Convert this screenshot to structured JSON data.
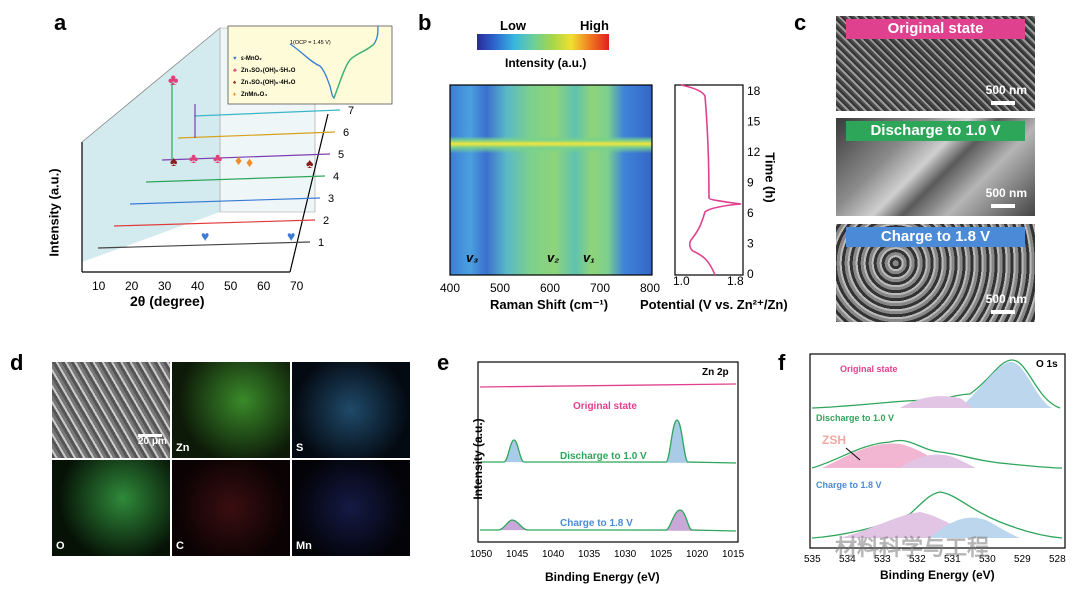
{
  "panels": {
    "a": {
      "label": "a",
      "xlabel": "2θ (degree)",
      "ylabel": "Intensity (a.u.)",
      "xticks": [
        "10",
        "20",
        "30",
        "40",
        "50",
        "60",
        "70"
      ],
      "curves": [
        "1",
        "2",
        "3",
        "4",
        "5",
        "6",
        "7"
      ],
      "legend": [
        {
          "symbol": "♥",
          "text": "ε-MnO₂",
          "color": "#3a7bd5"
        },
        {
          "symbol": "♣",
          "text": "Zn₄SO₄(OH)₆·5H₂O",
          "color": "#e0417b"
        },
        {
          "symbol": "♠",
          "text": "Zn₄SO₄(OH)₆·4H₂O",
          "color": "#8b1a1a"
        },
        {
          "symbol": "♦",
          "text": "ZnMn₂O₄",
          "color": "#f08c2a"
        }
      ],
      "inset_text": "1(OCP = 1.45 V)",
      "inset_points": [
        "1",
        "2",
        "3",
        "4",
        "5",
        "6",
        "7"
      ]
    },
    "b": {
      "label": "b",
      "colorbar_low": "Low",
      "colorbar_high": "High",
      "colorbar_title": "Intensity (a.u.)",
      "xlabel": "Raman Shift (cm⁻¹)",
      "xticks": [
        "400",
        "500",
        "600",
        "700",
        "800"
      ],
      "peaks": [
        "v₃",
        "v₂",
        "v₁"
      ],
      "right_xlabel": "Potential (V vs. Zn²⁺/Zn)",
      "right_xticks": [
        "1.0",
        "1.8"
      ],
      "time_label": "Time (h)",
      "time_ticks": [
        "0",
        "3",
        "6",
        "9",
        "12",
        "15",
        "18"
      ]
    },
    "c": {
      "label": "c",
      "tiles": [
        {
          "title": "Original state",
          "scale": "500 nm",
          "color": "#e0418f"
        },
        {
          "title": "Discharge to 1.0 V",
          "scale": "500 nm",
          "color": "#2ea65a"
        },
        {
          "title": "Charge to 1.8 V",
          "scale": "500 nm",
          "color": "#4a8ad6"
        }
      ]
    },
    "d": {
      "label": "d",
      "scale": "20 μm",
      "maps": [
        "Zn",
        "S",
        "O",
        "C",
        "Mn"
      ]
    },
    "e": {
      "label": "e",
      "corner": "Zn 2p",
      "xlabel": "Binding Energy (eV)",
      "ylabel": "Intensity (a.u.)",
      "xticks": [
        "1050",
        "1045",
        "1040",
        "1035",
        "1030",
        "1025",
        "1020",
        "1015"
      ],
      "states": [
        {
          "text": "Original state",
          "color": "#e0418f"
        },
        {
          "text": "Discharge to 1.0 V",
          "color": "#2ea65a"
        },
        {
          "text": "Charge to 1.8 V",
          "color": "#4a8ad6"
        }
      ]
    },
    "f": {
      "label": "f",
      "corner": "O 1s",
      "xlabel": "Binding Energy (eV)",
      "xticks": [
        "535",
        "534",
        "533",
        "532",
        "531",
        "530",
        "529",
        "528"
      ],
      "annotation": "ZSH",
      "states": [
        {
          "text": "Original state",
          "color": "#e0418f"
        },
        {
          "text": "Discharge to 1.0 V",
          "color": "#2ea65a"
        },
        {
          "text": "Charge to 1.8 V",
          "color": "#4a8ad6"
        }
      ]
    }
  },
  "watermark": "材料科学与工程"
}
